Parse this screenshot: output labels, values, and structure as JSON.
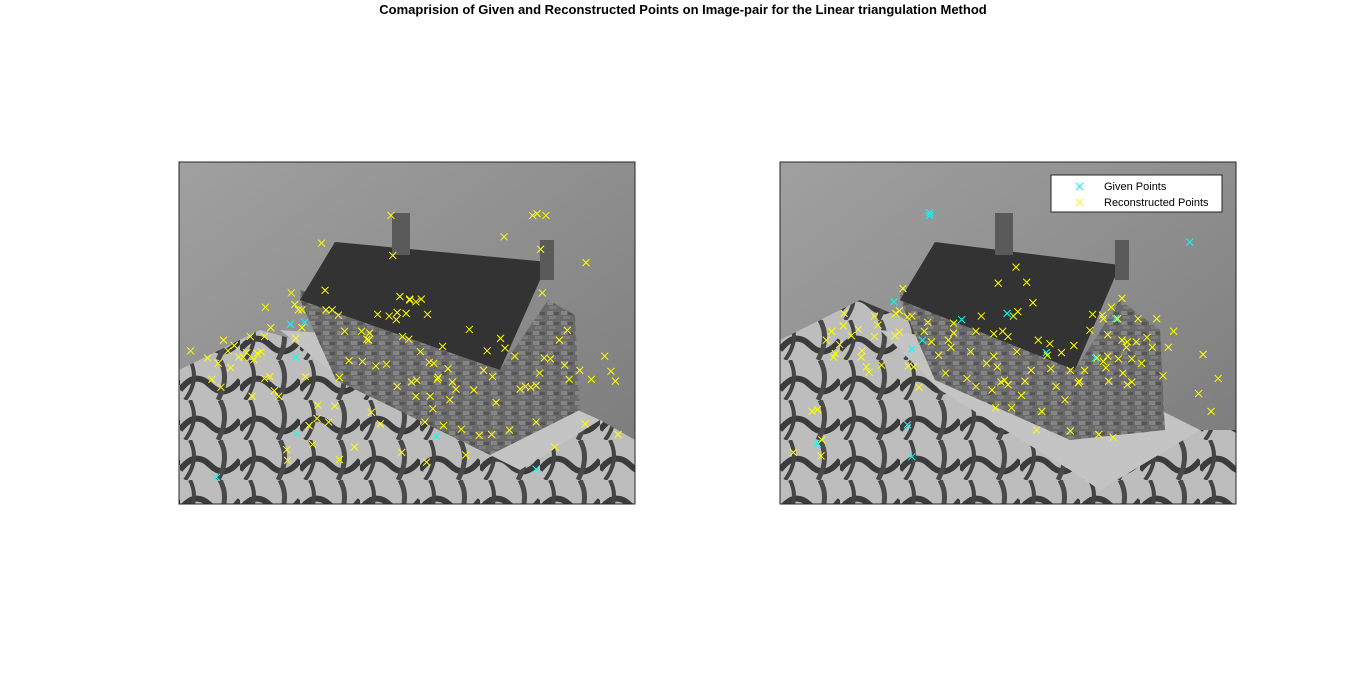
{
  "title": "Comaprision of Given and Reconstructed Points on Image-pair for the Linear triangulation Method",
  "colors": {
    "given": "#00FFFF",
    "reconstructed": "#FFFF00",
    "photo_background": "#8c8c8c",
    "roof": "#3a3a3a",
    "wall": "#6e6e6e",
    "ground": "#b4b4b4",
    "base": "#c8c8c8"
  },
  "chart_data": [
    {
      "type": "scatter",
      "title": "",
      "xlabel": "",
      "ylabel": "",
      "xlim": [
        0,
        512
      ],
      "ylim": [
        384,
        0
      ],
      "grid": false,
      "legend": null,
      "background_image": "grayscale photograph of a model stone house (view 1)",
      "series": [
        {
          "name": "Given Points",
          "marker": "x",
          "x": [
            42,
            141,
            289,
            401,
            125,
            131,
            132
          ],
          "y": [
            354,
            180,
            308,
            345,
            182,
            219,
            305
          ]
        },
        {
          "name": "Reconstructed Points",
          "marker": "x",
          "x": [
            13,
            32,
            37,
            44,
            50,
            55,
            58,
            62,
            67,
            72,
            76,
            80,
            84,
            88,
            92,
            96,
            102,
            107,
            112,
            126,
            130,
            134,
            138,
            142,
            146,
            150,
            156,
            160,
            164,
            168,
            175,
            180,
            186,
            191,
            197,
            206,
            214,
            216,
            221,
            226,
            233,
            238,
            240,
            245,
            251,
            255,
            261,
            266,
            271,
            276,
            281,
            285,
            291,
            296,
            302,
            307,
            311,
            317,
            322,
            326,
            331,
            337,
            342,
            346,
            351,
            356,
            361,
            366,
            371,
            377,
            383,
            389,
            395,
            401,
            405,
            410,
            417,
            422,
            427,
            433,
            438,
            456,
            478,
            485,
            490,
            493,
            47,
            82,
            96,
            131,
            138,
            179,
            213,
            244,
            258,
            267,
            279,
            352,
            401,
            436,
            155,
            180,
            250,
            278,
            282,
            286,
            290,
            297,
            304,
            365,
            408,
            450,
            457,
            463,
            397,
            402,
            412,
            406,
            259,
            245,
            205,
            211,
            165,
            172,
            248,
            259,
            266,
            272,
            223,
            236,
            103,
            97,
            121,
            122
          ],
          "y": [
            212,
            220,
            244,
            226,
            200,
            212,
            231,
            206,
            219,
            219,
            214,
            196,
            222,
            215,
            213,
            196,
            241,
            257,
            263,
            147,
            160,
            166,
            186,
            241,
            296,
            317,
            273,
            91,
            144,
            292,
            274,
            242,
            190,
            223,
            320,
            224,
            192,
            281,
            229,
            294,
            227,
            60,
            105,
            252,
            196,
            170,
            247,
            263,
            213,
            292,
            225,
            277,
            242,
            207,
            232,
            247,
            255,
            300,
            329,
            188,
            256,
            307,
            234,
            212,
            306,
            270,
            198,
            209,
            301,
            218,
            255,
            252,
            253,
            251,
            237,
            220,
            221,
            320,
            200,
            228,
            244,
            294,
            218,
            235,
            246,
            306,
            253,
            263,
            243,
            198,
            166,
            172,
            200,
            177,
            199,
            245,
            171,
            241,
            292,
            189,
            288,
            334,
            326,
            337,
            263,
            226,
            244,
            296,
            267,
            84,
            147,
            234,
            113,
            244,
            60,
            58,
            60,
            98,
            154,
            169,
            190,
            199,
            166,
            166,
            151,
            155,
            157,
            154,
            171,
            173,
            186,
            163,
            323,
            335
          ]
        }
      ]
    },
    {
      "type": "scatter",
      "title": "",
      "xlabel": "",
      "ylabel": "",
      "xlim": [
        0,
        512
      ],
      "ylim": [
        384,
        0
      ],
      "grid": false,
      "legend": "top-right",
      "background_image": "grayscale photograph of a model stone house (view 2)",
      "series": [
        {
          "name": "Given Points",
          "marker": "x",
          "x": [
            42,
            148,
            160,
            255,
            299,
            354,
            377,
            460,
            513,
            128,
            204,
            143,
            148,
            168,
            168
          ],
          "y": [
            316,
            210,
            200,
            170,
            214,
            220,
            176,
            90,
            326,
            157,
            177,
            295,
            331,
            60,
            57
          ],
          "notes": "subset of given points shown; most coincide with reconstructed markers"
        },
        {
          "name": "Reconstructed Points",
          "marker": "x",
          "x": [
            15,
            36,
            42,
            47,
            52,
            58,
            62,
            67,
            72,
            80,
            88,
            92,
            97,
            100,
            106,
            114,
            130,
            134,
            138,
            144,
            150,
            156,
            162,
            166,
            170,
            178,
            186,
            189,
            195,
            210,
            214,
            220,
            226,
            232,
            238,
            242,
            250,
            256,
            262,
            266,
            271,
            275,
            282,
            288,
            294,
            300,
            304,
            310,
            316,
            320,
            326,
            330,
            335,
            342,
            348,
            356,
            362,
            368,
            372,
            379,
            384,
            390,
            395,
            400,
            406,
            412,
            418,
            423,
            430,
            436,
            442,
            470,
            475,
            484,
            492,
            46,
            60,
            71,
            91,
            106,
            110,
            129,
            134,
            143,
            148,
            192,
            195,
            220,
            240,
            240,
            244,
            248,
            252,
            256,
            260,
            267,
            290,
            303,
            326,
            336,
            351,
            363,
            366,
            369,
            374,
            384,
            389,
            395,
            358,
            402,
            363,
            368,
            380,
            385,
            390,
            245,
            265,
            277,
            284
          ],
          "y": [
            326,
            280,
            278,
            312,
            200,
            190,
            215,
            205,
            170,
            195,
            188,
            212,
            230,
            236,
            173,
            228,
            170,
            167,
            142,
            229,
            230,
            253,
            190,
            180,
            202,
            217,
            237,
            200,
            192,
            243,
            213,
            252,
            173,
            226,
            256,
            276,
            190,
            196,
            173,
            213,
            262,
            246,
            234,
            301,
            280,
            217,
            232,
            252,
            214,
            267,
            302,
            206,
            248,
            234,
            189,
            220,
            172,
            218,
            163,
            176,
            153,
            202,
            221,
            202,
            226,
            197,
            208,
            176,
            240,
            208,
            190,
            260,
            216,
            280,
            243,
            330,
            219,
            184,
            219,
            196,
            183,
            195,
            191,
            174,
            173,
            208,
            181,
            190,
            218,
            193,
            230,
            247,
            245,
            250,
            276,
            168,
            200,
            204,
            234,
            246,
            171,
            176,
            231,
            246,
            309,
            200,
            208,
            247,
            306,
            176,
            224,
            194,
            221,
            237,
            250,
            136,
            118,
            135,
            158
          ]
        }
      ]
    }
  ]
}
